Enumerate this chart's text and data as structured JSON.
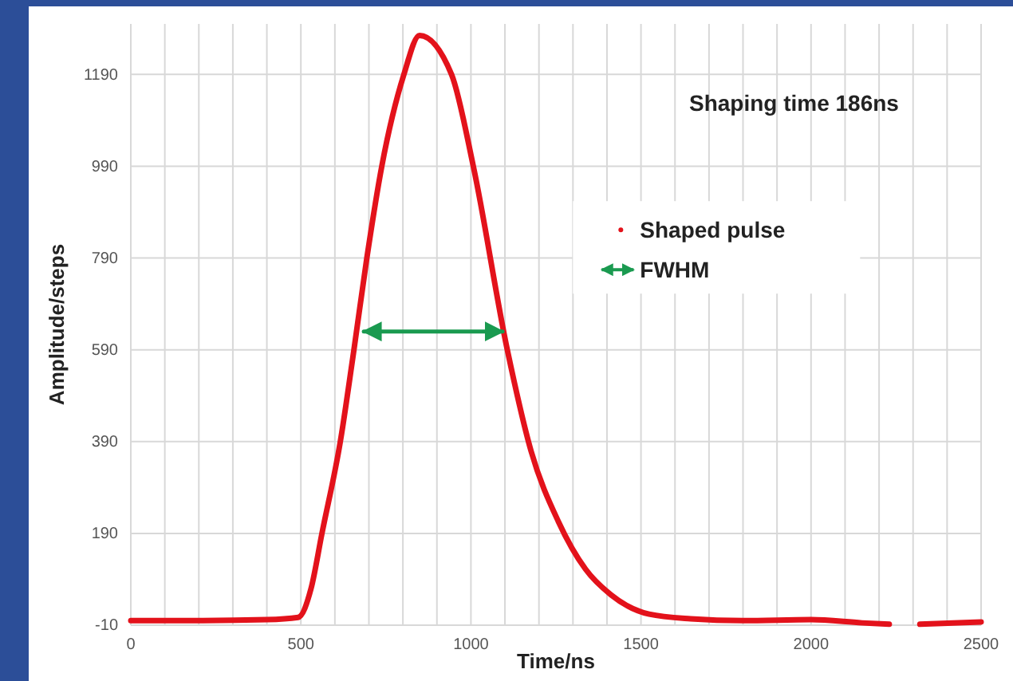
{
  "chart_data": {
    "type": "line",
    "xlabel": "Time/ns",
    "ylabel": "Amplitude/steps",
    "annotations": [
      "Shaping time 186ns"
    ],
    "xlim": [
      0,
      2500
    ],
    "ylim": [
      -10,
      1300
    ],
    "xticks": [
      0,
      {
        "value": 100,
        "label": null
      },
      {
        "value": 200,
        "label": null
      },
      {
        "value": 300,
        "label": null
      },
      {
        "value": 400,
        "label": null
      },
      500,
      {
        "value": 600,
        "label": null
      },
      {
        "value": 700,
        "label": null
      },
      {
        "value": 800,
        "label": null
      },
      {
        "value": 900,
        "label": null
      },
      1000,
      {
        "value": 1100,
        "label": null
      },
      {
        "value": 1200,
        "label": null
      },
      {
        "value": 1300,
        "label": null
      },
      {
        "value": 1400,
        "label": null
      },
      1500,
      {
        "value": 1600,
        "label": null
      },
      {
        "value": 1700,
        "label": null
      },
      {
        "value": 1800,
        "label": null
      },
      {
        "value": 1900,
        "label": null
      },
      2000,
      {
        "value": 2100,
        "label": null
      },
      {
        "value": 2200,
        "label": null
      },
      {
        "value": 2300,
        "label": null
      },
      {
        "value": 2400,
        "label": null
      },
      2500
    ],
    "yticks": [
      -10,
      190,
      390,
      590,
      790,
      990,
      1190
    ],
    "grid": true,
    "legend": "top right",
    "series": [
      {
        "name": "Shaped pulse",
        "color": "#e3121b",
        "x": [
          0,
          200,
          400,
          492,
          530,
          562,
          616,
          656,
          694,
          738,
          803,
          849,
          943,
          1007,
          1107,
          1177,
          1257,
          1337,
          1412,
          1524,
          1646,
          1800,
          2000,
          2150,
          2230,
          2280,
          2320,
          2500
        ],
        "values": [
          0,
          0,
          2,
          7,
          70,
          190,
          390,
          590,
          790,
          990,
          1190,
          1275,
          1190,
          990,
          590,
          369,
          216,
          112,
          56,
          14,
          4,
          0,
          2,
          -5,
          -8,
          null,
          -8,
          -3
        ]
      },
      {
        "name": "FWHM",
        "color": "#1a9a50",
        "x": [
          685,
          1093
        ],
        "values": [
          630,
          630
        ]
      }
    ]
  }
}
